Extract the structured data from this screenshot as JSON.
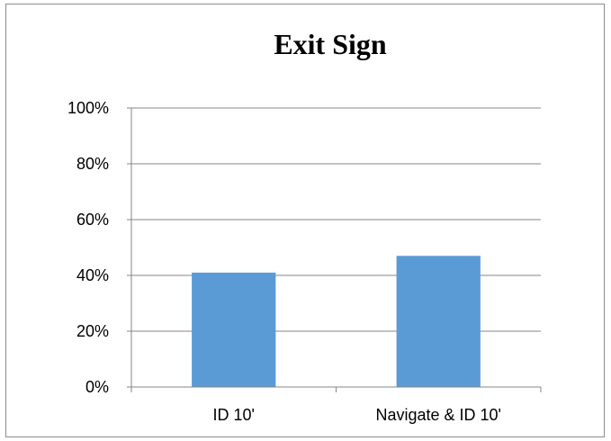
{
  "chart_data": {
    "type": "bar",
    "title": "Exit Sign",
    "categories": [
      "ID 10'",
      "Navigate & ID 10'"
    ],
    "values": [
      41,
      47
    ],
    "ylim": [
      0,
      100
    ],
    "y_ticks": [
      "0%",
      "20%",
      "40%",
      "60%",
      "80%",
      "100%"
    ],
    "grid": true,
    "legend": "none",
    "bar_color": "#5b9bd5",
    "grid_color": "#868686"
  }
}
